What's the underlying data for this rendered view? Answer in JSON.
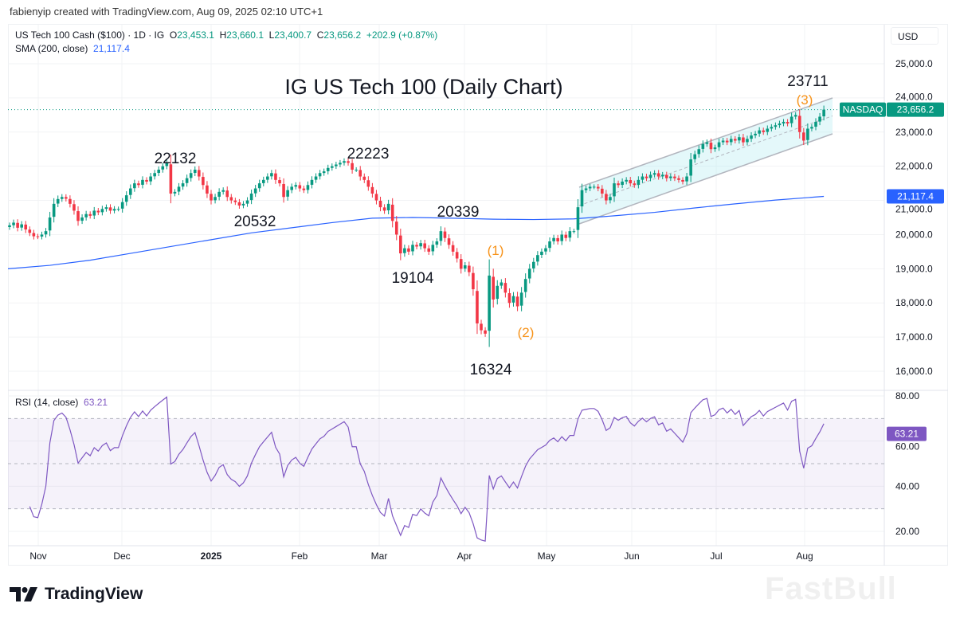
{
  "header": {
    "credit": "fabienyip created with TradingView.com, Aug 09, 2025 02:10 UTC+1",
    "symbol": "US Tech 100 Cash ($100) · 1D · IG",
    "open_label": "O",
    "open": "23,453.1",
    "high_label": "H",
    "high": "23,660.1",
    "low_label": "L",
    "low": "23,400.7",
    "close_label": "C",
    "close": "23,656.2",
    "change": "+202.9 (+0.87%)",
    "sma_label": "SMA (200, close)",
    "sma_value": "21,117.4",
    "currency": "USD"
  },
  "rsi": {
    "label": "RSI (14, close)",
    "value": "63.21"
  },
  "price_tag": {
    "name": "NASDAQ",
    "value": "23,656.2"
  },
  "sma_tag": {
    "value": "21,117.4"
  },
  "annotations": {
    "title": "IG US Tech 100 (Daily Chart)",
    "p22132": "22132",
    "p20532": "20532",
    "p22223": "22223",
    "p20339": "20339",
    "p19104": "19104",
    "p16324": "16324",
    "p23711": "23711",
    "w1": "(1)",
    "w2": "(2)",
    "w3": "(3)"
  },
  "watermark": "FastBull",
  "logo": {
    "text": "TradingView"
  },
  "chart_data": {
    "type": "candlestick",
    "colors": {
      "up": "#089981",
      "down": "#f23645",
      "sma": "#2962ff",
      "rsi": "#7e57c2",
      "channel": "#b2ebf2",
      "wave": "#f7931a"
    },
    "price_axis": {
      "ticks": [
        "25,000.0",
        "24,000.0",
        "23,000.0",
        "22,000.0",
        "21,000.0",
        "20,000.0",
        "19,000.0",
        "18,000.0",
        "17,000.0",
        "16,000.0"
      ],
      "tick_values": [
        25000,
        24000,
        23000,
        22000,
        21000,
        20000,
        19000,
        18000,
        17000,
        16000
      ],
      "range": [
        15700,
        25800
      ]
    },
    "rsi_axis": {
      "ticks": [
        "80.00",
        "60.00",
        "40.00",
        "20.00"
      ],
      "tick_values": [
        80,
        60,
        40,
        20
      ],
      "bands": [
        70,
        50,
        30
      ]
    },
    "x_ticks": [
      "Nov",
      "Dec",
      "2025",
      "Feb",
      "Mar",
      "Apr",
      "May",
      "Jun",
      "Jul",
      "Aug"
    ],
    "closes": [
      20270,
      20350,
      20200,
      20300,
      20150,
      20050,
      19950,
      19940,
      20000,
      20100,
      20500,
      20900,
      21040,
      21100,
      21050,
      20900,
      20700,
      20400,
      20500,
      20600,
      20550,
      20700,
      20650,
      20750,
      20800,
      20700,
      20750,
      20750,
      20950,
      21150,
      21350,
      21500,
      21450,
      21600,
      21550,
      21700,
      21800,
      21900,
      22000,
      22100,
      21200,
      21250,
      21400,
      21500,
      21650,
      21800,
      21900,
      21700,
      21450,
      21200,
      21000,
      21100,
      21250,
      21300,
      21100,
      21000,
      20950,
      20850,
      20900,
      21000,
      21200,
      21350,
      21500,
      21600,
      21700,
      21800,
      21600,
      21500,
      21100,
      21300,
      21400,
      21450,
      21350,
      21300,
      21450,
      21600,
      21700,
      21800,
      21850,
      21950,
      22000,
      22050,
      22100,
      22150,
      22100,
      21900,
      21900,
      21700,
      21600,
      21400,
      21200,
      21000,
      20800,
      20700,
      20900,
      20400,
      20000,
      19450,
      19600,
      19500,
      19700,
      19650,
      19750,
      19600,
      19500,
      19700,
      19800,
      20100,
      19900,
      19700,
      19500,
      19300,
      19000,
      19100,
      18900,
      18400,
      17400,
      17200,
      17100,
      18800,
      18100,
      18500,
      18600,
      18300,
      18000,
      18200,
      17900,
      18300,
      18700,
      19000,
      19200,
      19400,
      19500,
      19600,
      19800,
      19900,
      19800,
      20000,
      19900,
      20100,
      20100,
      20800,
      21300,
      21350,
      21400,
      21400,
      21350,
      21200,
      21000,
      21100,
      21500,
      21450,
      21550,
      21600,
      21500,
      21450,
      21600,
      21700,
      21650,
      21750,
      21800,
      21700,
      21750,
      21650,
      21700,
      21650,
      21600,
      21550,
      21700,
      22200,
      22350,
      22500,
      22650,
      22700,
      22500,
      22550,
      22700,
      22750,
      22700,
      22800,
      22750,
      22850,
      22700,
      22800,
      22900,
      22950,
      23050,
      23000,
      23100,
      23150,
      23200,
      23250,
      23300,
      23250,
      23450,
      23500,
      23000,
      22750,
      23100,
      23150,
      23300,
      23450,
      23656
    ],
    "sma200_sampled_every_10_days": [
      19000,
      19100,
      19250,
      19450,
      19650,
      19850,
      20050,
      20200,
      20350,
      20480,
      20500,
      20480,
      20450,
      20440,
      20460,
      20550,
      20650,
      20780,
      20900,
      21010,
      21100
    ],
    "sma200_last": 21117.4,
    "channel": {
      "upper": [
        21386,
        23997
      ],
      "lower": [
        20314,
        22948
      ]
    },
    "labeled_levels": [
      22132,
      20532,
      22223,
      20339,
      19104,
      16324,
      23711
    ],
    "last_close": 23656.2,
    "grid": true
  }
}
